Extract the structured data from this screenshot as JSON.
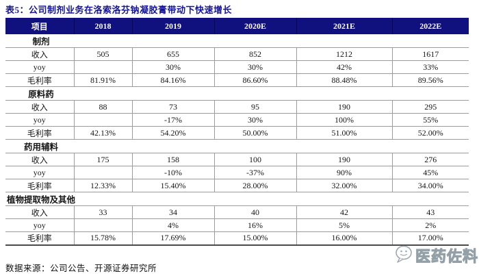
{
  "page": {
    "title": "表5：公司制剂业务在洛索洛芬钠凝胶膏带动下快速增长",
    "source_note": "数据来源：公司公告、开源证券研究所"
  },
  "table": {
    "columns": [
      "项目",
      "2018",
      "2019",
      "2020E",
      "2021E",
      "2022E"
    ],
    "sections": [
      {
        "name": "制剂",
        "rows": [
          {
            "label": "收入",
            "values": [
              "505",
              "655",
              "852",
              "1212",
              "1617"
            ]
          },
          {
            "label": "yoy",
            "values": [
              "",
              "30%",
              "30%",
              "42%",
              "33%"
            ]
          },
          {
            "label": "毛利率",
            "values": [
              "81.91%",
              "84.16%",
              "86.60%",
              "88.48%",
              "89.56%"
            ]
          }
        ]
      },
      {
        "name": "原料药",
        "rows": [
          {
            "label": "收入",
            "values": [
              "88",
              "73",
              "95",
              "190",
              "295"
            ]
          },
          {
            "label": "yoy",
            "values": [
              "",
              "-17%",
              "30%",
              "100%",
              "55%"
            ]
          },
          {
            "label": "毛利率",
            "values": [
              "42.13%",
              "54.20%",
              "50.00%",
              "51.00%",
              "52.00%"
            ]
          }
        ]
      },
      {
        "name": "药用辅料",
        "rows": [
          {
            "label": "收入",
            "values": [
              "175",
              "158",
              "100",
              "190",
              "276"
            ]
          },
          {
            "label": "yoy",
            "values": [
              "",
              "-10%",
              "-37%",
              "90%",
              "45%"
            ]
          },
          {
            "label": "毛利率",
            "values": [
              "12.33%",
              "15.40%",
              "28.00%",
              "32.00%",
              "34.00%"
            ]
          }
        ]
      },
      {
        "name": "植物提取物及其他",
        "rows": [
          {
            "label": "收入",
            "values": [
              "33",
              "34",
              "40",
              "42",
              "43"
            ]
          },
          {
            "label": "yoy",
            "values": [
              "",
              "4%",
              "16%",
              "5%",
              "2%"
            ]
          },
          {
            "label": "毛利率",
            "values": [
              "15.78%",
              "17.69%",
              "15.00%",
              "16.00%",
              "17.00%"
            ]
          }
        ]
      }
    ]
  },
  "watermark": {
    "icon": "wechat-chat-bubble-icon",
    "text": "医药佐料"
  },
  "colors": {
    "title_text": "#1414A0",
    "header_bg": "#10107E",
    "header_text": "#FFFFFF",
    "border_light": "#9B9B9B",
    "border_dark": "#4A4A4A",
    "watermark_stroke": "#93A0A8"
  }
}
